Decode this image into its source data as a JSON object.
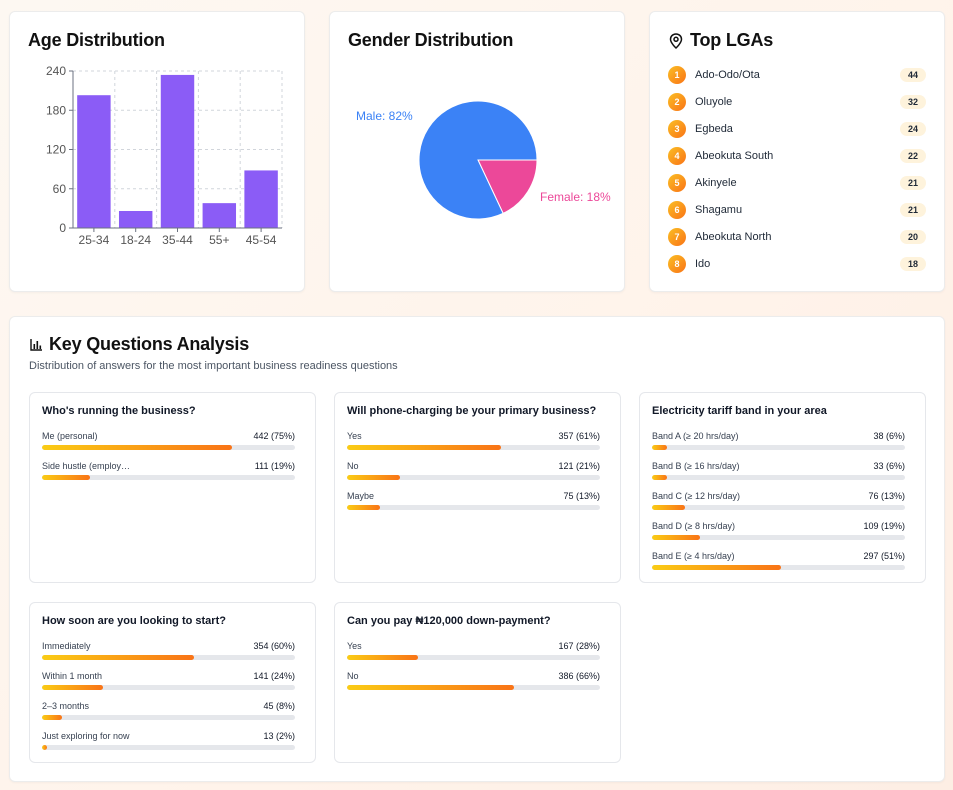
{
  "age": {
    "title": "Age Distribution",
    "chart_data": {
      "type": "bar",
      "title": "Age Distribution",
      "categories": [
        "25-34",
        "18-24",
        "35-44",
        "55+",
        "45-54"
      ],
      "values": [
        203,
        26,
        234,
        38,
        88
      ],
      "yticks": [
        "0",
        "60",
        "120",
        "180",
        "240"
      ],
      "ylim": [
        0,
        240
      ],
      "color": "#8b5cf6"
    }
  },
  "gender": {
    "title": "Gender Distribution",
    "chart_data": {
      "type": "pie",
      "slices": [
        {
          "name": "Male",
          "label": "Male: 82%",
          "value": 82,
          "color": "#3b82f6"
        },
        {
          "name": "Female",
          "label": "Female: 18%",
          "value": 18,
          "color": "#ec4899"
        }
      ]
    }
  },
  "lga": {
    "title": "Top LGAs",
    "items": [
      {
        "rank": "1",
        "name": "Ado-Odo/Ota",
        "count": "44"
      },
      {
        "rank": "2",
        "name": "Oluyole",
        "count": "32"
      },
      {
        "rank": "3",
        "name": "Egbeda",
        "count": "24"
      },
      {
        "rank": "4",
        "name": "Abeokuta South",
        "count": "22"
      },
      {
        "rank": "5",
        "name": "Akinyele",
        "count": "21"
      },
      {
        "rank": "6",
        "name": "Shagamu",
        "count": "21"
      },
      {
        "rank": "7",
        "name": "Abeokuta North",
        "count": "20"
      },
      {
        "rank": "8",
        "name": "Ido",
        "count": "18"
      }
    ]
  },
  "key_questions": {
    "title": "Key Questions Analysis",
    "subtitle": "Distribution of answers for the most important business readiness questions",
    "questions": [
      {
        "title": "Who's running the business?",
        "answers": [
          {
            "label": "Me (personal)",
            "value": "442 (75%)",
            "pct": 75
          },
          {
            "label": "Side hustle (employ…",
            "value": "111 (19%)",
            "pct": 19
          }
        ]
      },
      {
        "title": "Will phone-charging be your primary business?",
        "answers": [
          {
            "label": "Yes",
            "value": "357 (61%)",
            "pct": 61
          },
          {
            "label": "No",
            "value": "121 (21%)",
            "pct": 21
          },
          {
            "label": "Maybe",
            "value": "75 (13%)",
            "pct": 13
          }
        ]
      },
      {
        "title": "Electricity tariff band in your area",
        "answers": [
          {
            "label": "Band A (≥ 20 hrs/day)",
            "value": "38 (6%)",
            "pct": 6
          },
          {
            "label": "Band B (≥ 16 hrs/day)",
            "value": "33 (6%)",
            "pct": 6
          },
          {
            "label": "Band C (≥ 12 hrs/day)",
            "value": "76 (13%)",
            "pct": 13
          },
          {
            "label": "Band D (≥ 8 hrs/day)",
            "value": "109 (19%)",
            "pct": 19
          },
          {
            "label": "Band E (≥ 4 hrs/day)",
            "value": "297 (51%)",
            "pct": 51
          }
        ]
      },
      {
        "title": "How soon are you looking to start?",
        "answers": [
          {
            "label": "Immediately",
            "value": "354 (60%)",
            "pct": 60
          },
          {
            "label": "Within 1 month",
            "value": "141 (24%)",
            "pct": 24
          },
          {
            "label": "2–3 months",
            "value": "45 (8%)",
            "pct": 8
          },
          {
            "label": "Just exploring for now",
            "value": "13 (2%)",
            "pct": 2
          }
        ]
      },
      {
        "title": "Can you pay ₦120,000 down-payment?",
        "answers": [
          {
            "label": "Yes",
            "value": "167 (28%)",
            "pct": 28
          },
          {
            "label": "No",
            "value": "386 (66%)",
            "pct": 66
          }
        ]
      }
    ]
  }
}
